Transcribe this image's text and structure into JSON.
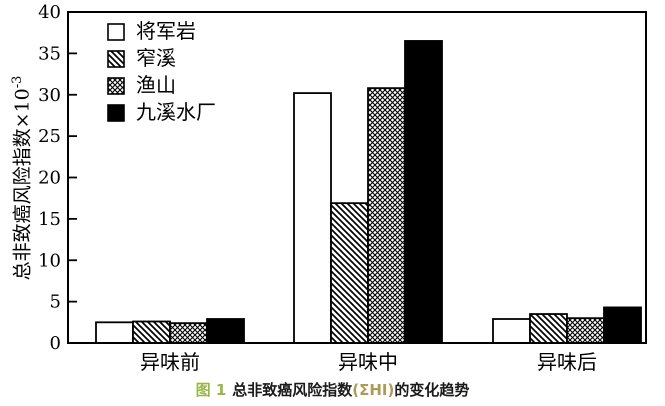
{
  "figure": {
    "caption": {
      "fig_label": "图 1",
      "title_before": "总非致癌风险指数",
      "sigma": "(ΣHI)",
      "title_after": "的变化趋势"
    },
    "colors": {
      "caption_label_green": "#9ab648",
      "caption_sigma_tan": "#ad9a55",
      "axis": "#000000",
      "bar_black": "#000000",
      "bar_white": "#ffffff"
    }
  },
  "chart_data": {
    "type": "bar",
    "title": "",
    "categories": [
      "异味前",
      "异味中",
      "异味后"
    ],
    "series": [
      {
        "name": "将军岩",
        "fill": "white-fill",
        "values": [
          2.5,
          30.2,
          2.9
        ]
      },
      {
        "name": "窄溪",
        "fill": "diagonal-hatch",
        "values": [
          2.6,
          16.9,
          3.5
        ]
      },
      {
        "name": "渔山",
        "fill": "cross-hatch",
        "values": [
          2.4,
          30.8,
          3.0
        ]
      },
      {
        "name": "九溪水厂",
        "fill": "black-fill",
        "values": [
          2.9,
          36.5,
          4.3
        ]
      }
    ],
    "xlabel": "",
    "ylabel_main": "总非致癌风险指数×10",
    "ylabel_exponent": "-3",
    "ylim": [
      0,
      40
    ],
    "ytick_step": 5,
    "yticks": [
      0,
      5,
      10,
      15,
      20,
      25,
      30,
      35,
      40
    ],
    "grid": false,
    "legend_position": "upper-left-inside"
  }
}
